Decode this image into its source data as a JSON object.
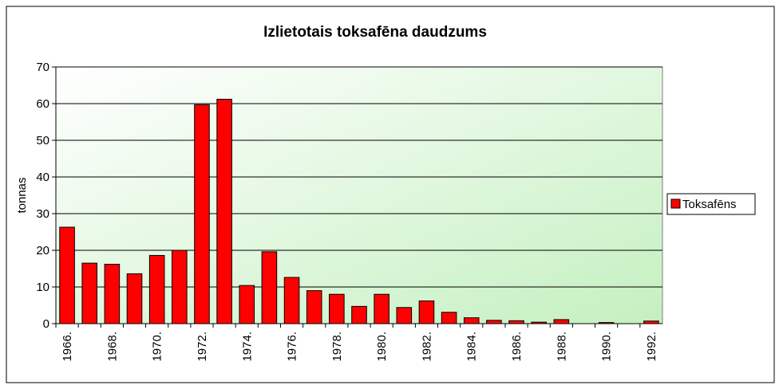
{
  "chart_data": {
    "type": "bar",
    "title": "Izlietotais toksafēna daudzums",
    "y_label": "tonnas",
    "categories": [
      "1966.",
      null,
      "1968.",
      null,
      "1970.",
      null,
      "1972.",
      null,
      "1974.",
      null,
      "1976.",
      null,
      "1978.",
      null,
      "1980.",
      null,
      "1982.",
      null,
      "1984.",
      null,
      "1986.",
      null,
      "1988.",
      null,
      "1990.",
      null,
      "1992."
    ],
    "series": [
      {
        "name": "Toksafēns",
        "color": "#ff0000",
        "values": [
          26.3,
          16.5,
          16.2,
          13.6,
          18.6,
          20,
          59.7,
          61.2,
          10.4,
          19.6,
          12.6,
          9,
          8,
          4.7,
          8,
          4.4,
          6.2,
          3.1,
          1.6,
          0.9,
          0.8,
          0.4,
          1.1,
          0,
          0.3,
          0,
          0.7
        ]
      }
    ],
    "ylim": [
      0,
      70
    ],
    "yticks": [
      0,
      10,
      20,
      30,
      40,
      50,
      60,
      70
    ],
    "grid": true,
    "legend": "right"
  }
}
